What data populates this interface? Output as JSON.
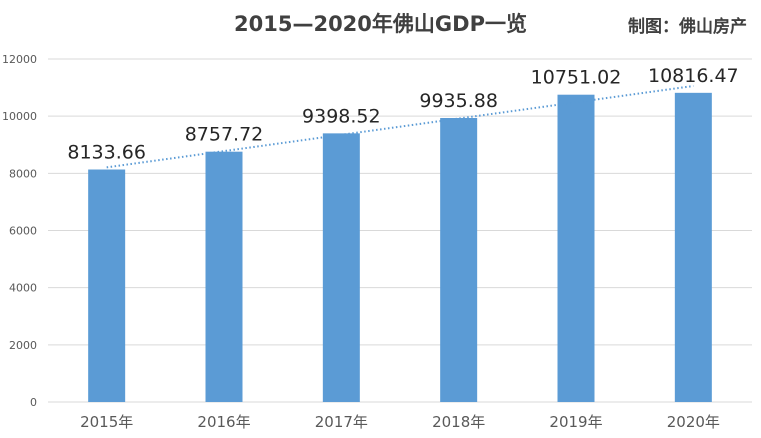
{
  "title": "2015—2020年佛山GDP一览",
  "credit": "制图：佛山房产",
  "chart_data": {
    "type": "bar",
    "title": "2015—2020年佛山GDP一览",
    "categories": [
      "2015年",
      "2016年",
      "2017年",
      "2018年",
      "2019年",
      "2020年"
    ],
    "values": [
      8133.66,
      8757.72,
      9398.52,
      9935.88,
      10751.02,
      10816.47
    ],
    "data_labels": [
      "8133.66",
      "8757.72",
      "9398.52",
      "9935.88",
      "10751.02",
      "10816.47"
    ],
    "ylim": [
      0,
      12000
    ],
    "yticks": [
      "0",
      "2000",
      "4000",
      "6000",
      "8000",
      "10000",
      "12000"
    ],
    "xlabel": "",
    "ylabel": "",
    "grid": true,
    "trendline": "linear",
    "colors": {
      "bar": "#5b9bd5",
      "trendline": "#5b9bd5",
      "grid": "#d9d9d9"
    }
  }
}
